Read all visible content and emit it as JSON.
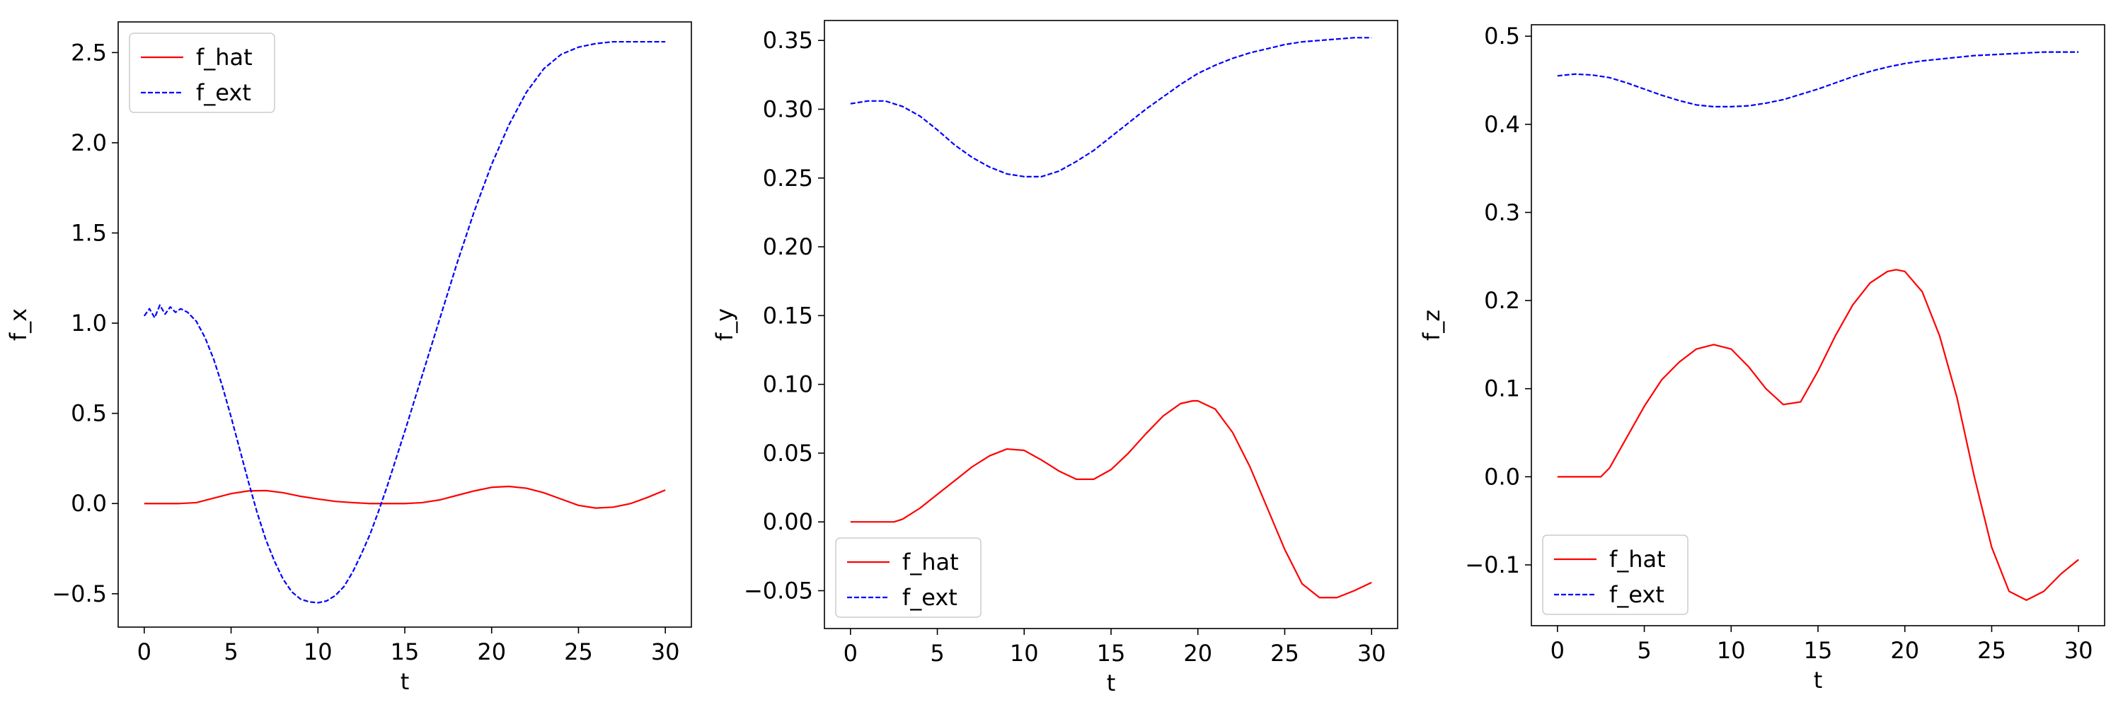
{
  "figure": {
    "background": "#ffffff"
  },
  "styles": {
    "f_hat_color": "#ff0000",
    "f_ext_color": "#0000ff",
    "f_ext_dash": "dashed"
  },
  "chart_data": [
    {
      "type": "line",
      "xlabel": "t",
      "ylabel": "f_x",
      "xlim": [
        -1.5,
        31.5
      ],
      "ylim": [
        -0.685,
        2.67
      ],
      "xticks": [
        0,
        5,
        10,
        15,
        20,
        25,
        30
      ],
      "xtick_labels": [
        "0",
        "5",
        "10",
        "15",
        "20",
        "25",
        "30"
      ],
      "yticks": [
        -0.5,
        0.0,
        0.5,
        1.0,
        1.5,
        2.0,
        2.5
      ],
      "ytick_labels": [
        "−0.5",
        "0.0",
        "0.5",
        "1.0",
        "1.5",
        "2.0",
        "2.5"
      ],
      "legend": {
        "position": "top-left",
        "entries": [
          "f_hat",
          "f_ext"
        ]
      },
      "series": [
        {
          "name": "f_hat",
          "style": "solid",
          "color": "#ff0000",
          "x": [
            0,
            1,
            2,
            3,
            4,
            5,
            6,
            7,
            8,
            9,
            10,
            11,
            12,
            13,
            14,
            15,
            16,
            17,
            18,
            19,
            20,
            21,
            22,
            23,
            24,
            25,
            26,
            27,
            28,
            29,
            30
          ],
          "y": [
            0.0,
            0.0,
            0.0,
            0.005,
            0.03,
            0.055,
            0.07,
            0.072,
            0.06,
            0.04,
            0.025,
            0.012,
            0.005,
            0.0,
            0.0,
            0.0,
            0.005,
            0.02,
            0.045,
            0.07,
            0.09,
            0.095,
            0.085,
            0.06,
            0.025,
            -0.01,
            -0.025,
            -0.02,
            0.0,
            0.035,
            0.075
          ]
        },
        {
          "name": "f_ext",
          "style": "dashed",
          "color": "#0000ff",
          "x": [
            0,
            0.3,
            0.6,
            0.9,
            1.2,
            1.5,
            1.8,
            2.1,
            2.5,
            3,
            3.5,
            4,
            4.5,
            5,
            5.5,
            6,
            6.5,
            7,
            7.5,
            8,
            8.5,
            9,
            9.5,
            10,
            10.5,
            11,
            11.5,
            12,
            12.5,
            13,
            13.5,
            14,
            14.5,
            15,
            16,
            17,
            18,
            19,
            20,
            21,
            22,
            23,
            24,
            25,
            26,
            27,
            28,
            29,
            30
          ],
          "y": [
            1.04,
            1.08,
            1.03,
            1.1,
            1.05,
            1.09,
            1.06,
            1.08,
            1.06,
            1.01,
            0.92,
            0.8,
            0.65,
            0.48,
            0.3,
            0.12,
            -0.05,
            -0.2,
            -0.32,
            -0.42,
            -0.49,
            -0.53,
            -0.545,
            -0.55,
            -0.54,
            -0.51,
            -0.46,
            -0.38,
            -0.28,
            -0.17,
            -0.04,
            0.1,
            0.25,
            0.4,
            0.71,
            1.02,
            1.33,
            1.62,
            1.88,
            2.1,
            2.28,
            2.41,
            2.49,
            2.53,
            2.55,
            2.56,
            2.56,
            2.56,
            2.56
          ]
        }
      ]
    },
    {
      "type": "line",
      "xlabel": "t",
      "ylabel": "f_y",
      "xlim": [
        -1.5,
        31.5
      ],
      "ylim": [
        -0.0775,
        0.3645
      ],
      "xticks": [
        0,
        5,
        10,
        15,
        20,
        25,
        30
      ],
      "xtick_labels": [
        "0",
        "5",
        "10",
        "15",
        "20",
        "25",
        "30"
      ],
      "yticks": [
        -0.05,
        0.0,
        0.05,
        0.1,
        0.15,
        0.2,
        0.25,
        0.3,
        0.35
      ],
      "ytick_labels": [
        "−0.05",
        "0.00",
        "0.05",
        "0.10",
        "0.15",
        "0.20",
        "0.25",
        "0.30",
        "0.35"
      ],
      "legend": {
        "position": "bottom-left",
        "entries": [
          "f_hat",
          "f_ext"
        ]
      },
      "series": [
        {
          "name": "f_hat",
          "style": "solid",
          "color": "#ff0000",
          "x": [
            0,
            1,
            2,
            2.5,
            3,
            4,
            5,
            6,
            7,
            8,
            9,
            10,
            11,
            12,
            13,
            14,
            15,
            16,
            17,
            18,
            19,
            19.7,
            20,
            21,
            22,
            23,
            24,
            25,
            26,
            27,
            28,
            29,
            30
          ],
          "y": [
            0.0,
            0.0,
            0.0,
            0.0,
            0.002,
            0.01,
            0.02,
            0.03,
            0.04,
            0.048,
            0.053,
            0.052,
            0.045,
            0.037,
            0.031,
            0.031,
            0.038,
            0.05,
            0.064,
            0.077,
            0.086,
            0.088,
            0.088,
            0.082,
            0.065,
            0.04,
            0.01,
            -0.02,
            -0.045,
            -0.055,
            -0.055,
            -0.05,
            -0.044
          ]
        },
        {
          "name": "f_ext",
          "style": "dashed",
          "color": "#0000ff",
          "x": [
            0,
            1,
            2,
            3,
            4,
            5,
            6,
            7,
            8,
            9,
            10,
            11,
            12,
            13,
            14,
            15,
            16,
            17,
            18,
            19,
            20,
            21,
            22,
            23,
            24,
            25,
            26,
            27,
            28,
            29,
            30
          ],
          "y": [
            0.304,
            0.306,
            0.306,
            0.302,
            0.295,
            0.285,
            0.274,
            0.265,
            0.258,
            0.253,
            0.251,
            0.251,
            0.255,
            0.262,
            0.27,
            0.28,
            0.29,
            0.3,
            0.309,
            0.318,
            0.326,
            0.332,
            0.337,
            0.341,
            0.344,
            0.347,
            0.349,
            0.35,
            0.351,
            0.352,
            0.352
          ]
        }
      ]
    },
    {
      "type": "line",
      "xlabel": "t",
      "ylabel": "f_z",
      "xlim": [
        -1.5,
        31.5
      ],
      "ylim": [
        -0.169,
        0.513
      ],
      "xticks": [
        0,
        5,
        10,
        15,
        20,
        25,
        30
      ],
      "xtick_labels": [
        "0",
        "5",
        "10",
        "15",
        "20",
        "25",
        "30"
      ],
      "yticks": [
        -0.1,
        0.0,
        0.1,
        0.2,
        0.3,
        0.4,
        0.5
      ],
      "ytick_labels": [
        "−0.1",
        "0.0",
        "0.1",
        "0.2",
        "0.3",
        "0.4",
        "0.5"
      ],
      "legend": {
        "position": "bottom-left",
        "entries": [
          "f_hat",
          "f_ext"
        ]
      },
      "series": [
        {
          "name": "f_hat",
          "style": "solid",
          "color": "#ff0000",
          "x": [
            0,
            1,
            2,
            2.5,
            3,
            4,
            5,
            6,
            7,
            8,
            9,
            10,
            11,
            12,
            13,
            14,
            15,
            16,
            17,
            18,
            19,
            19.5,
            20,
            21,
            22,
            23,
            24,
            25,
            26,
            27,
            28,
            29,
            30
          ],
          "y": [
            0.0,
            0.0,
            0.0,
            0.0,
            0.01,
            0.045,
            0.08,
            0.11,
            0.13,
            0.145,
            0.15,
            0.145,
            0.125,
            0.1,
            0.082,
            0.085,
            0.12,
            0.16,
            0.195,
            0.22,
            0.233,
            0.235,
            0.233,
            0.21,
            0.16,
            0.09,
            0.0,
            -0.08,
            -0.13,
            -0.14,
            -0.13,
            -0.11,
            -0.094
          ]
        },
        {
          "name": "f_ext",
          "style": "dashed",
          "color": "#0000ff",
          "x": [
            0,
            1,
            2,
            3,
            4,
            5,
            6,
            7,
            8,
            9,
            10,
            11,
            12,
            13,
            14,
            15,
            16,
            17,
            18,
            19,
            20,
            21,
            22,
            23,
            24,
            25,
            26,
            27,
            28,
            29,
            30
          ],
          "y": [
            0.455,
            0.457,
            0.456,
            0.453,
            0.447,
            0.44,
            0.433,
            0.427,
            0.422,
            0.42,
            0.42,
            0.421,
            0.424,
            0.428,
            0.434,
            0.44,
            0.447,
            0.454,
            0.46,
            0.465,
            0.469,
            0.472,
            0.474,
            0.476,
            0.478,
            0.479,
            0.48,
            0.481,
            0.482,
            0.482,
            0.482
          ]
        }
      ]
    }
  ]
}
